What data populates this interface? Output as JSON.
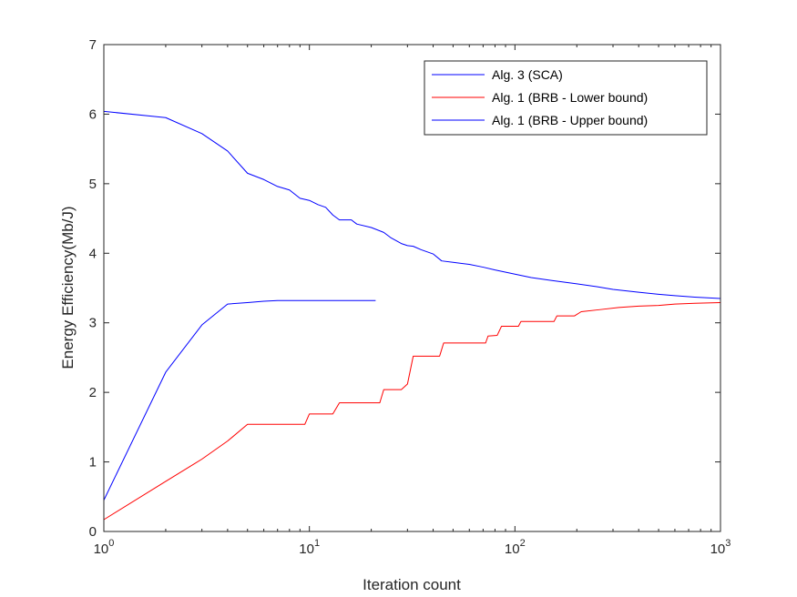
{
  "chart_data": {
    "type": "line",
    "xlabel": "Iteration count",
    "ylabel": "Energy Efficiency(Mb/J)",
    "xscale": "log",
    "xlim": [
      1,
      1000
    ],
    "ylim": [
      0,
      7
    ],
    "grid": false,
    "legend_position": "top-right",
    "x_ticks": [
      {
        "value": 1,
        "base": "10",
        "exp": "0"
      },
      {
        "value": 10,
        "base": "10",
        "exp": "1"
      },
      {
        "value": 100,
        "base": "10",
        "exp": "2"
      },
      {
        "value": 1000,
        "base": "10",
        "exp": "3"
      }
    ],
    "y_ticks": [
      0,
      1,
      2,
      3,
      4,
      5,
      6,
      7
    ],
    "series": [
      {
        "name": "Alg. 3 (SCA)",
        "color": "#0000ff",
        "step": false,
        "points": [
          [
            1,
            0.45
          ],
          [
            2,
            2.29
          ],
          [
            3,
            2.97
          ],
          [
            4,
            3.27
          ],
          [
            5,
            3.29
          ],
          [
            6,
            3.31
          ],
          [
            7,
            3.32
          ],
          [
            10,
            3.32
          ],
          [
            15,
            3.32
          ],
          [
            21,
            3.32
          ]
        ]
      },
      {
        "name": "Alg. 1 (BRB - Lower bound)",
        "color": "#ff0000",
        "step": false,
        "points": [
          [
            1,
            0.17
          ],
          [
            2,
            0.72
          ],
          [
            3,
            1.04
          ],
          [
            4,
            1.3
          ],
          [
            5,
            1.54
          ],
          [
            9.5,
            1.54
          ],
          [
            10,
            1.69
          ],
          [
            13,
            1.69
          ],
          [
            14,
            1.85
          ],
          [
            22,
            1.85
          ],
          [
            23,
            2.04
          ],
          [
            28,
            2.04
          ],
          [
            30,
            2.12
          ],
          [
            32,
            2.52
          ],
          [
            43,
            2.52
          ],
          [
            45,
            2.71
          ],
          [
            72,
            2.71
          ],
          [
            74,
            2.81
          ],
          [
            82,
            2.82
          ],
          [
            86,
            2.95
          ],
          [
            104,
            2.95
          ],
          [
            107,
            3.02
          ],
          [
            155,
            3.02
          ],
          [
            160,
            3.1
          ],
          [
            195,
            3.1
          ],
          [
            210,
            3.16
          ],
          [
            260,
            3.19
          ],
          [
            320,
            3.22
          ],
          [
            400,
            3.24
          ],
          [
            500,
            3.25
          ],
          [
            600,
            3.27
          ],
          [
            750,
            3.28
          ],
          [
            1000,
            3.29
          ]
        ]
      },
      {
        "name": "Alg. 1 (BRB - Upper bound)",
        "color": "#0000ff",
        "step": false,
        "points": [
          [
            1,
            6.04
          ],
          [
            2,
            5.95
          ],
          [
            3,
            5.72
          ],
          [
            4,
            5.47
          ],
          [
            5,
            5.15
          ],
          [
            6,
            5.06
          ],
          [
            7,
            4.96
          ],
          [
            8,
            4.91
          ],
          [
            9,
            4.79
          ],
          [
            10,
            4.76
          ],
          [
            11,
            4.7
          ],
          [
            12,
            4.66
          ],
          [
            13,
            4.55
          ],
          [
            14,
            4.48
          ],
          [
            16,
            4.48
          ],
          [
            17,
            4.42
          ],
          [
            20,
            4.37
          ],
          [
            23,
            4.3
          ],
          [
            25,
            4.22
          ],
          [
            28,
            4.14
          ],
          [
            30,
            4.11
          ],
          [
            32,
            4.1
          ],
          [
            35,
            4.05
          ],
          [
            40,
            3.99
          ],
          [
            44,
            3.89
          ],
          [
            50,
            3.87
          ],
          [
            60,
            3.84
          ],
          [
            70,
            3.8
          ],
          [
            80,
            3.76
          ],
          [
            100,
            3.7
          ],
          [
            120,
            3.65
          ],
          [
            150,
            3.61
          ],
          [
            200,
            3.56
          ],
          [
            250,
            3.52
          ],
          [
            300,
            3.48
          ],
          [
            400,
            3.44
          ],
          [
            500,
            3.41
          ],
          [
            600,
            3.39
          ],
          [
            750,
            3.37
          ],
          [
            1000,
            3.35
          ]
        ]
      }
    ]
  }
}
